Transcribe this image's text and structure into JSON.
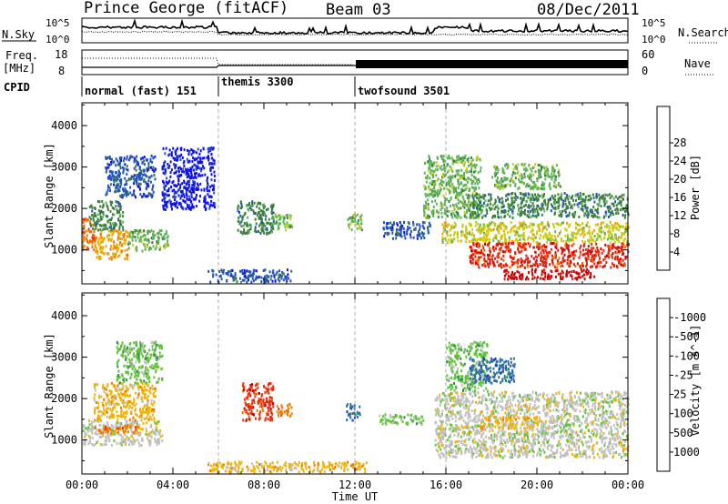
{
  "header": {
    "station": "Prince George (fitACF)",
    "beam": "Beam 03",
    "date": "08/Dec/2011"
  },
  "left_labels": {
    "nsky": "N.Sky",
    "freq": "Freq.",
    "mhz": "[MHz]",
    "cpid": "CPID"
  },
  "right_labels": {
    "nsearch": "N.Search",
    "nave": "Nave"
  },
  "noise_axis": {
    "top": "10^5",
    "bottom": "10^0"
  },
  "freq_axis": {
    "top": "18",
    "bottom": "8"
  },
  "nave_axis": {
    "top": "60",
    "bottom": "0"
  },
  "modes": [
    {
      "label": "normal (fast) 151",
      "start": 0.0,
      "end": 6.0
    },
    {
      "label": "themis 3300",
      "start": 6.0,
      "end": 12.0
    },
    {
      "label": "twofsound 3501",
      "start": 12.0,
      "end": 24.0
    }
  ],
  "axes": {
    "ylabel": "Slant Range [km]",
    "xlabel": "Time UT",
    "y_ticks": [
      "1000",
      "2000",
      "3000",
      "4000"
    ],
    "y_tick_values": [
      1000,
      2000,
      3000,
      4000
    ],
    "y_range": [
      180,
      4550
    ],
    "x_ticks": [
      "00:00",
      "04:00",
      "08:00",
      "12:00",
      "16:00",
      "20:00",
      "00:00"
    ],
    "x_tick_values": [
      0,
      4,
      8,
      12,
      16,
      20,
      24
    ],
    "x_range": [
      0,
      24
    ]
  },
  "power_scale": {
    "title": "Power [dB]",
    "labels": [
      "4",
      "8",
      "12",
      "16",
      "20",
      "24",
      "28"
    ],
    "colors": [
      "#1010ee",
      "#2255bb",
      "#3d7f3d",
      "#5fb35a",
      "#c9cc10",
      "#f0a000",
      "#f26a00",
      "#e52010",
      "#cc0000"
    ]
  },
  "velocity_scale": {
    "title": "Velocity [m s^-1]",
    "labels": [
      "1000",
      "500",
      "100",
      "25",
      "-25",
      "-100",
      "-500",
      "-1000"
    ],
    "colors": [
      "#1a34c0",
      "#2f6fae",
      "#2f8a5a",
      "#62c33a",
      "#c0c0c0",
      "#f0b400",
      "#f07a00",
      "#e83010",
      "#cc0000"
    ]
  },
  "chart_data": [
    {
      "type": "heatmap",
      "name": "power",
      "xlabel": "Time UT",
      "ylabel": "Slant Range [km]",
      "colorbar": "Power [dB]",
      "regions": [
        {
          "t0": 0.0,
          "t1": 0.6,
          "r0": 1000,
          "r1": 1800,
          "level": 6
        },
        {
          "t0": 0.5,
          "t1": 2.0,
          "r0": 800,
          "r1": 1500,
          "level": 5
        },
        {
          "t0": 0.3,
          "t1": 1.8,
          "r0": 1500,
          "r1": 2200,
          "level": 2
        },
        {
          "t0": 1.0,
          "t1": 3.2,
          "r0": 2300,
          "r1": 3300,
          "level": 1
        },
        {
          "t0": 2.0,
          "t1": 3.8,
          "r0": 1000,
          "r1": 1500,
          "level": 3
        },
        {
          "t0": 3.5,
          "t1": 5.8,
          "r0": 2000,
          "r1": 3500,
          "level": 0
        },
        {
          "t0": 5.5,
          "t1": 9.2,
          "r0": 250,
          "r1": 550,
          "level": 1
        },
        {
          "t0": 6.8,
          "t1": 8.4,
          "r0": 1400,
          "r1": 2200,
          "level": 2
        },
        {
          "t0": 8.3,
          "t1": 9.2,
          "r0": 1500,
          "r1": 1900,
          "level": 3
        },
        {
          "t0": 11.6,
          "t1": 12.3,
          "r0": 1500,
          "r1": 1900,
          "level": 3
        },
        {
          "t0": 13.2,
          "t1": 15.3,
          "r0": 1300,
          "r1": 1700,
          "level": 1
        },
        {
          "t0": 15.0,
          "t1": 17.5,
          "r0": 1800,
          "r1": 3300,
          "level": 3
        },
        {
          "t0": 15.8,
          "t1": 24.0,
          "r0": 1200,
          "r1": 1700,
          "level": 4
        },
        {
          "t0": 17.0,
          "t1": 24.0,
          "r0": 600,
          "r1": 1200,
          "level": 7
        },
        {
          "t0": 18.5,
          "t1": 22.5,
          "r0": 320,
          "r1": 560,
          "level": 8
        },
        {
          "t0": 17.0,
          "t1": 24.0,
          "r0": 1800,
          "r1": 2400,
          "level": 2
        },
        {
          "t0": 18.0,
          "t1": 21.0,
          "r0": 2500,
          "r1": 3100,
          "level": 3
        }
      ]
    },
    {
      "type": "heatmap",
      "name": "velocity",
      "xlabel": "Time UT",
      "ylabel": "Slant Range [km]",
      "colorbar": "Velocity [m s^-1]",
      "regions": [
        {
          "t0": 0.0,
          "t1": 3.5,
          "r0": 900,
          "r1": 1500,
          "level": 4
        },
        {
          "t0": 0.5,
          "t1": 3.2,
          "r0": 1500,
          "r1": 2400,
          "level": 5
        },
        {
          "t0": 1.5,
          "t1": 3.5,
          "r0": 2400,
          "r1": 3400,
          "level": 3
        },
        {
          "t0": 0.5,
          "t1": 2.5,
          "r0": 1200,
          "r1": 1400,
          "level": 6
        },
        {
          "t0": 5.5,
          "t1": 12.5,
          "r0": 250,
          "r1": 500,
          "level": 5
        },
        {
          "t0": 7.0,
          "t1": 8.4,
          "r0": 1500,
          "r1": 2400,
          "level": 7
        },
        {
          "t0": 8.5,
          "t1": 9.2,
          "r0": 1600,
          "r1": 1900,
          "level": 6
        },
        {
          "t0": 11.6,
          "t1": 12.2,
          "r0": 1500,
          "r1": 1900,
          "level": 1
        },
        {
          "t0": 13.0,
          "t1": 15.0,
          "r0": 1400,
          "r1": 1650,
          "level": 3
        },
        {
          "t0": 15.5,
          "t1": 24.0,
          "r0": 600,
          "r1": 2200,
          "level": 4
        },
        {
          "t0": 16.0,
          "t1": 17.8,
          "r0": 2200,
          "r1": 3400,
          "level": 3
        },
        {
          "t0": 17.5,
          "t1": 20.0,
          "r0": 1300,
          "r1": 1600,
          "level": 5
        },
        {
          "t0": 17.0,
          "t1": 19.0,
          "r0": 2400,
          "r1": 3000,
          "level": 1
        }
      ]
    }
  ]
}
